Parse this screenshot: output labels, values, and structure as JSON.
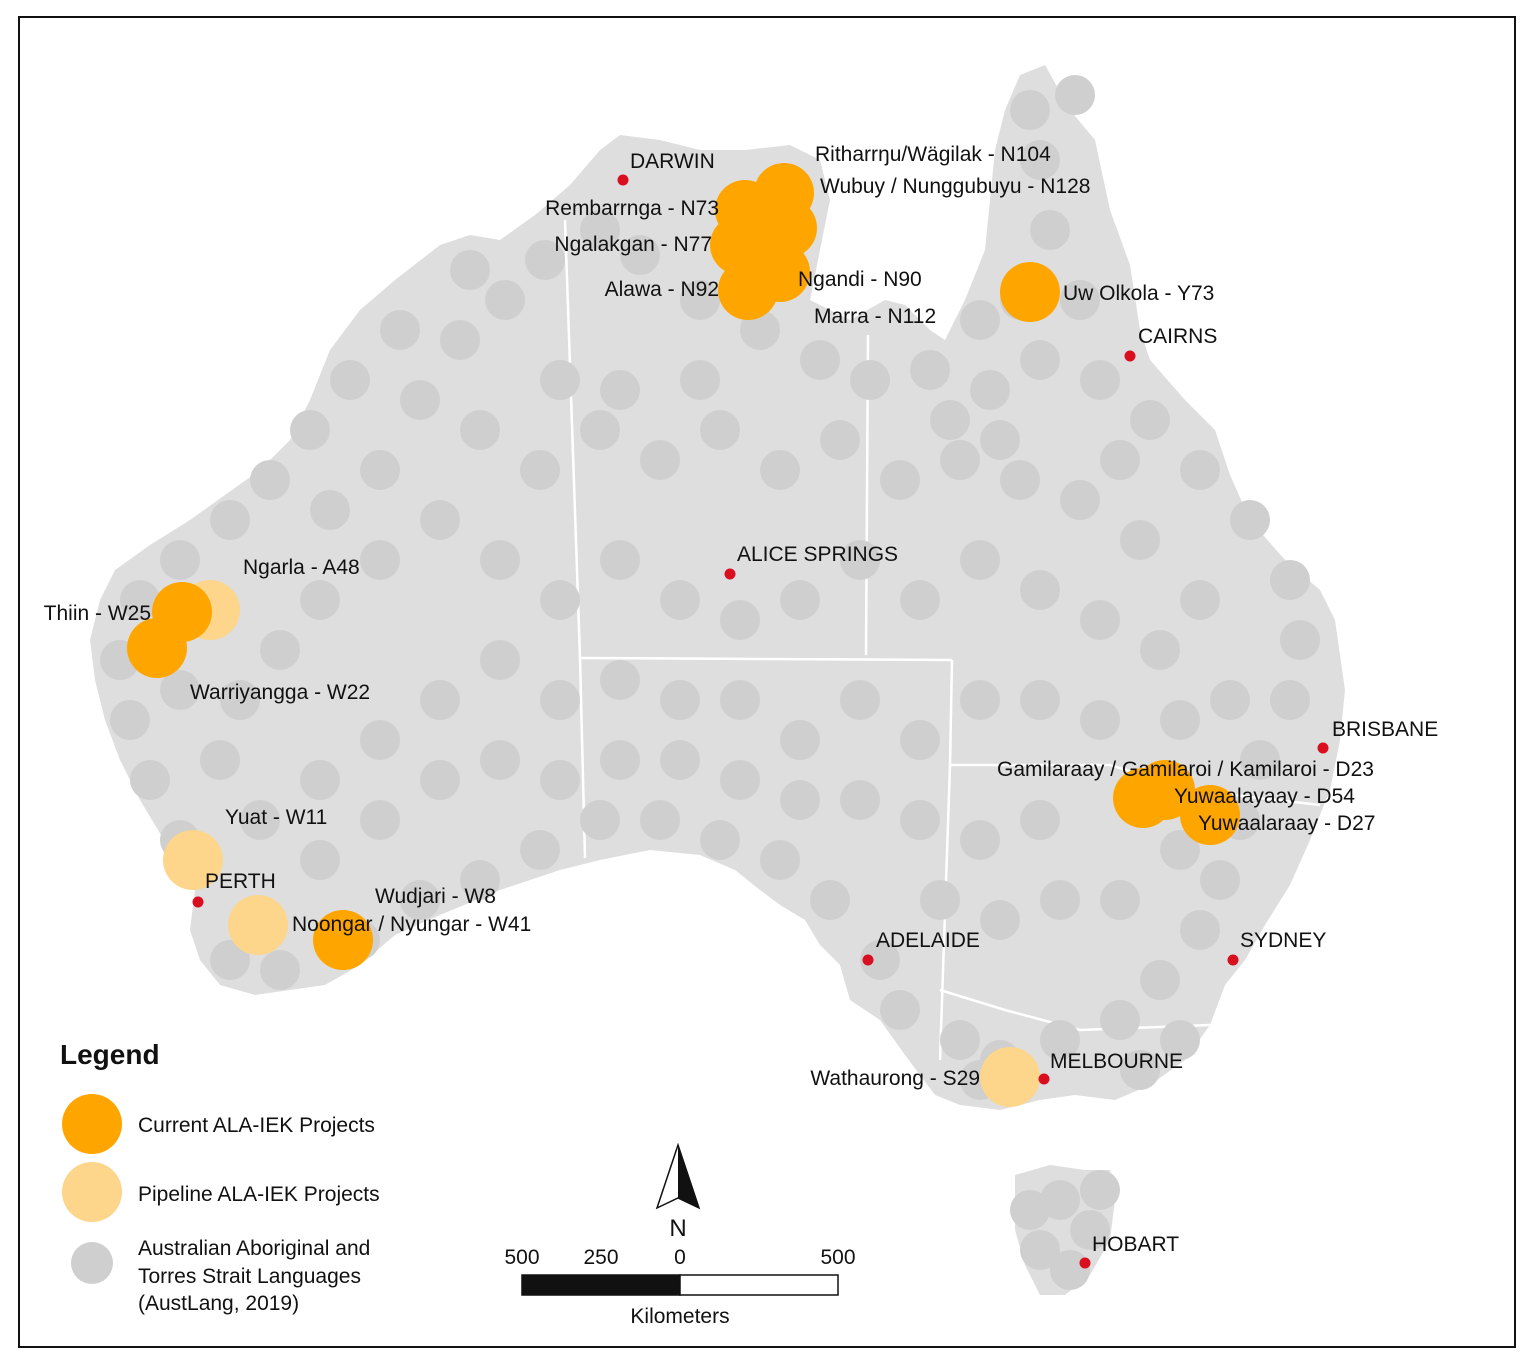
{
  "colors": {
    "land": "#dedede",
    "austlang_dot": "#cfcfcf",
    "current": "#ffa500",
    "pipeline": "#fdd58b",
    "city": "#d90e1e",
    "border": "#ffffff"
  },
  "cities": [
    {
      "name": "DARWIN"
    },
    {
      "name": "CAIRNS"
    },
    {
      "name": "ALICE SPRINGS"
    },
    {
      "name": "BRISBANE"
    },
    {
      "name": "PERTH"
    },
    {
      "name": "ADELAIDE"
    },
    {
      "name": "SYDNEY"
    },
    {
      "name": "MELBOURNE"
    },
    {
      "name": "HOBART"
    }
  ],
  "projects": {
    "current": [
      "Ritharrŋu/Wägilak - N104",
      "Wubuy / Nunggubuyu - N128",
      "Rembarrnga - N73",
      "Ngalakgan - N77",
      "Ngandi - N90",
      "Alawa - N92",
      "Marra - N112",
      "Uw Olkola - Y73",
      "Thiin - W25",
      "Warriyangga - W22",
      "Noongar / Nyungar - W41",
      "Gamilaraay / Gamilaroi / Kamilaroi - D23",
      "Yuwaalayaay - D54",
      "Yuwaalaraay - D27"
    ],
    "pipeline": [
      "Ngarla - A48",
      "Yuat - W11",
      "Wudjari - W8",
      "Wathaurong - S29"
    ]
  },
  "legend": {
    "title": "Legend",
    "items": [
      {
        "label": "Current ALA-IEK Projects",
        "symbol": "current"
      },
      {
        "label": "Pipeline ALA-IEK Projects",
        "symbol": "pipeline"
      },
      {
        "label_lines": [
          "Australian Aboriginal and",
          "Torres Strait Languages",
          "(AustLang, 2019)"
        ],
        "symbol": "austlang_dot"
      }
    ]
  },
  "north_arrow": {
    "label": "N"
  },
  "scale_bar": {
    "ticks": [
      "500",
      "250",
      "0",
      "500"
    ],
    "unit": "Kilometers"
  }
}
